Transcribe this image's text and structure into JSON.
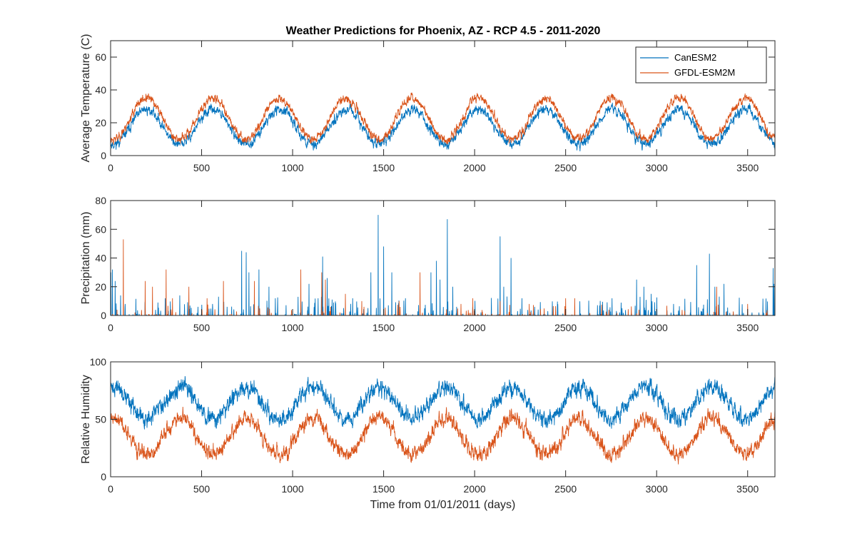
{
  "title": "Weather Predictions for Phoenix, AZ - RCP 4.5 - 2011-2020",
  "colors": {
    "can": "#0072BD",
    "gfdl": "#D95319",
    "axis": "#262626"
  },
  "legend": {
    "placement": "top-right",
    "items": [
      "CanESM2",
      "GFDL-ESM2M"
    ]
  },
  "chart_data": [
    {
      "type": "line",
      "name": "temperature",
      "title": "Weather Predictions for Phoenix, AZ - RCP 4.5 - 2011-2020",
      "xlabel": "",
      "ylabel": "Average Temperature (C)",
      "xlim": [
        0,
        3650
      ],
      "ylim": [
        0,
        70
      ],
      "xticks": [
        "0",
        "500",
        "1000",
        "1500",
        "2000",
        "2500",
        "3000",
        "3500"
      ],
      "yticks": [
        "0",
        "20",
        "40",
        "60"
      ],
      "x_step_days": 1,
      "series": [
        {
          "name": "CanESM2",
          "color": "#0072BD",
          "model": "seasonal",
          "mean": 17.5,
          "amp": 10.5,
          "noise": 3.2,
          "seed": 11
        },
        {
          "name": "GFDL-ESM2M",
          "color": "#D95319",
          "model": "seasonal",
          "mean": 22.5,
          "amp": 12.5,
          "noise": 2.8,
          "seed": 23
        }
      ]
    },
    {
      "type": "line",
      "name": "precipitation",
      "xlabel": "",
      "ylabel": "Precipitation (mm)",
      "xlim": [
        0,
        3650
      ],
      "ylim": [
        0,
        80
      ],
      "xticks": [
        "0",
        "500",
        "1000",
        "1500",
        "2000",
        "2500",
        "3000",
        "3500"
      ],
      "yticks": [
        "0",
        "20",
        "40",
        "60",
        "80"
      ],
      "x_step_days": 1,
      "series": [
        {
          "name": "CanESM2",
          "color": "#0072BD",
          "model": "spikes",
          "seed": 37,
          "rate": 0.07,
          "scale": 6,
          "peaks": [
            [
              2,
              30
            ],
            [
              10,
              32
            ],
            [
              25,
              24
            ],
            [
              55,
              14
            ],
            [
              80,
              8
            ],
            [
              190,
              10
            ],
            [
              260,
              9
            ],
            [
              300,
              12
            ],
            [
              380,
              14
            ],
            [
              480,
              6
            ],
            [
              560,
              8
            ],
            [
              640,
              6
            ],
            [
              720,
              45
            ],
            [
              745,
              44
            ],
            [
              760,
              30
            ],
            [
              815,
              32
            ],
            [
              870,
              20
            ],
            [
              905,
              12
            ],
            [
              1030,
              13
            ],
            [
              1090,
              22
            ],
            [
              1140,
              12
            ],
            [
              1165,
              41
            ],
            [
              1190,
              26
            ],
            [
              1225,
              9
            ],
            [
              1330,
              12
            ],
            [
              1430,
              30
            ],
            [
              1470,
              70
            ],
            [
              1500,
              48
            ],
            [
              1545,
              30
            ],
            [
              1620,
              12
            ],
            [
              1760,
              30
            ],
            [
              1790,
              38
            ],
            [
              1810,
              25
            ],
            [
              1850,
              67
            ],
            [
              1880,
              20
            ],
            [
              2140,
              55
            ],
            [
              2160,
              20
            ],
            [
              2200,
              40
            ],
            [
              2260,
              12
            ],
            [
              2330,
              6
            ],
            [
              2890,
              25
            ],
            [
              2930,
              20
            ],
            [
              2970,
              15
            ],
            [
              3220,
              35
            ],
            [
              3290,
              43
            ],
            [
              3320,
              20
            ],
            [
              3370,
              22
            ],
            [
              3640,
              33
            ],
            [
              3645,
              22
            ]
          ]
        },
        {
          "name": "GFDL-ESM2M",
          "color": "#D95319",
          "model": "spikes",
          "seed": 53,
          "rate": 0.04,
          "scale": 3.5,
          "peaks": [
            [
              70,
              53
            ],
            [
              190,
              24
            ],
            [
              230,
              20
            ],
            [
              305,
              32
            ],
            [
              340,
              12
            ],
            [
              430,
              20
            ],
            [
              530,
              12
            ],
            [
              620,
              24
            ],
            [
              790,
              24
            ],
            [
              1045,
              32
            ],
            [
              1160,
              30
            ],
            [
              1180,
              25
            ],
            [
              1290,
              15
            ],
            [
              1380,
              10
            ],
            [
              1585,
              10
            ],
            [
              1700,
              30
            ],
            [
              1925,
              8
            ],
            [
              1990,
              12
            ],
            [
              2140,
              10
            ],
            [
              2300,
              8
            ],
            [
              2500,
              12
            ],
            [
              2550,
              12
            ],
            [
              3330,
              20
            ],
            [
              3500,
              8
            ]
          ]
        }
      ]
    },
    {
      "type": "line",
      "name": "humidity",
      "xlabel": "Time from 01/01/2011 (days)",
      "ylabel": "Relative Humidity",
      "xlim": [
        0,
        3650
      ],
      "ylim": [
        0,
        100
      ],
      "xticks": [
        "0",
        "500",
        "1000",
        "1500",
        "2000",
        "2500",
        "3000",
        "3500"
      ],
      "yticks": [
        "0",
        "50",
        "100"
      ],
      "x_step_days": 1,
      "series": [
        {
          "name": "CanESM2",
          "color": "#0072BD",
          "model": "seasonal",
          "mean": 64,
          "amp": -14,
          "noise": 8,
          "seed": 71
        },
        {
          "name": "GFDL-ESM2M",
          "color": "#D95319",
          "model": "seasonal",
          "mean": 35,
          "amp": -16,
          "noise": 7,
          "seed": 89
        }
      ]
    }
  ]
}
